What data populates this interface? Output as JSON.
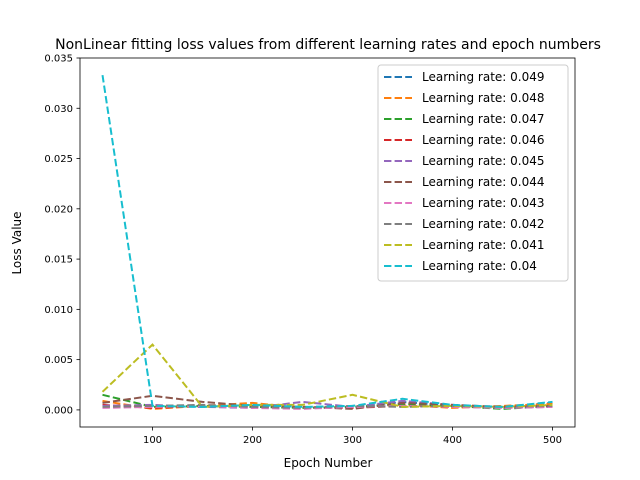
{
  "chart_data": {
    "type": "line",
    "title": "NonLinear fitting loss values from different learning rates and epoch numbers",
    "xlabel": "Epoch Number",
    "ylabel": "Loss Value",
    "xlim": [
      27.5,
      522.5
    ],
    "ylim": [
      -0.0017,
      0.035
    ],
    "x_ticks": [
      100,
      200,
      300,
      400,
      500
    ],
    "y_ticks": [
      0.0,
      0.005,
      0.01,
      0.015,
      0.02,
      0.025,
      0.03,
      0.035
    ],
    "y_tick_labels": [
      "0.000",
      "0.005",
      "0.010",
      "0.015",
      "0.020",
      "0.025",
      "0.030",
      "0.035"
    ],
    "grid": false,
    "legend_position": "top-right",
    "line_style": "dashed",
    "x": [
      50,
      100,
      150,
      200,
      250,
      300,
      350,
      400,
      450,
      500
    ],
    "series": [
      {
        "name": "Learning rate: 0.049",
        "color": "#1f77b4",
        "values": [
          0.0003,
          0.0004,
          0.0003,
          0.0004,
          0.0002,
          0.0003,
          0.0008,
          0.0004,
          0.0003,
          0.0007
        ]
      },
      {
        "name": "Learning rate: 0.048",
        "color": "#ff7f0e",
        "values": [
          0.0009,
          0.0001,
          0.0004,
          0.0007,
          0.0002,
          0.0003,
          0.0005,
          0.0002,
          0.0004,
          0.0006
        ]
      },
      {
        "name": "Learning rate: 0.047",
        "color": "#2ca02c",
        "values": [
          0.0015,
          0.0003,
          0.0004,
          0.0003,
          0.0002,
          0.0003,
          0.0006,
          0.0004,
          0.0001,
          0.0004
        ]
      },
      {
        "name": "Learning rate: 0.046",
        "color": "#d62728",
        "values": [
          0.0005,
          0.0002,
          0.0004,
          0.0003,
          0.0003,
          0.0002,
          0.0004,
          0.0003,
          0.0003,
          0.0003
        ]
      },
      {
        "name": "Learning rate: 0.045",
        "color": "#9467bd",
        "values": [
          0.0004,
          0.0005,
          0.0003,
          0.0002,
          0.0008,
          0.0003,
          0.0009,
          0.0005,
          0.0002,
          0.0003
        ]
      },
      {
        "name": "Learning rate: 0.044",
        "color": "#8c564b",
        "values": [
          0.0007,
          0.0014,
          0.0008,
          0.0004,
          0.0003,
          0.0001,
          0.0007,
          0.0005,
          0.0003,
          0.0004
        ]
      },
      {
        "name": "Learning rate: 0.043",
        "color": "#e377c2",
        "values": [
          0.0002,
          0.0003,
          0.0004,
          0.0002,
          0.0001,
          0.0003,
          0.0004,
          0.0003,
          0.0002,
          0.0003
        ]
      },
      {
        "name": "Learning rate: 0.042",
        "color": "#7f7f7f",
        "values": [
          0.0003,
          0.0004,
          0.0005,
          0.0003,
          0.0002,
          0.0004,
          0.0003,
          0.0004,
          0.0003,
          0.0004
        ]
      },
      {
        "name": "Learning rate: 0.041",
        "color": "#bcbd22",
        "values": [
          0.0018,
          0.0065,
          0.0003,
          0.0005,
          0.0005,
          0.0015,
          0.0003,
          0.0004,
          0.0003,
          0.0005
        ]
      },
      {
        "name": "Learning rate: 0.04",
        "color": "#17becf",
        "values": [
          0.0333,
          0.0004,
          0.0003,
          0.0005,
          0.0003,
          0.0004,
          0.0011,
          0.0005,
          0.0003,
          0.0008
        ]
      }
    ]
  }
}
